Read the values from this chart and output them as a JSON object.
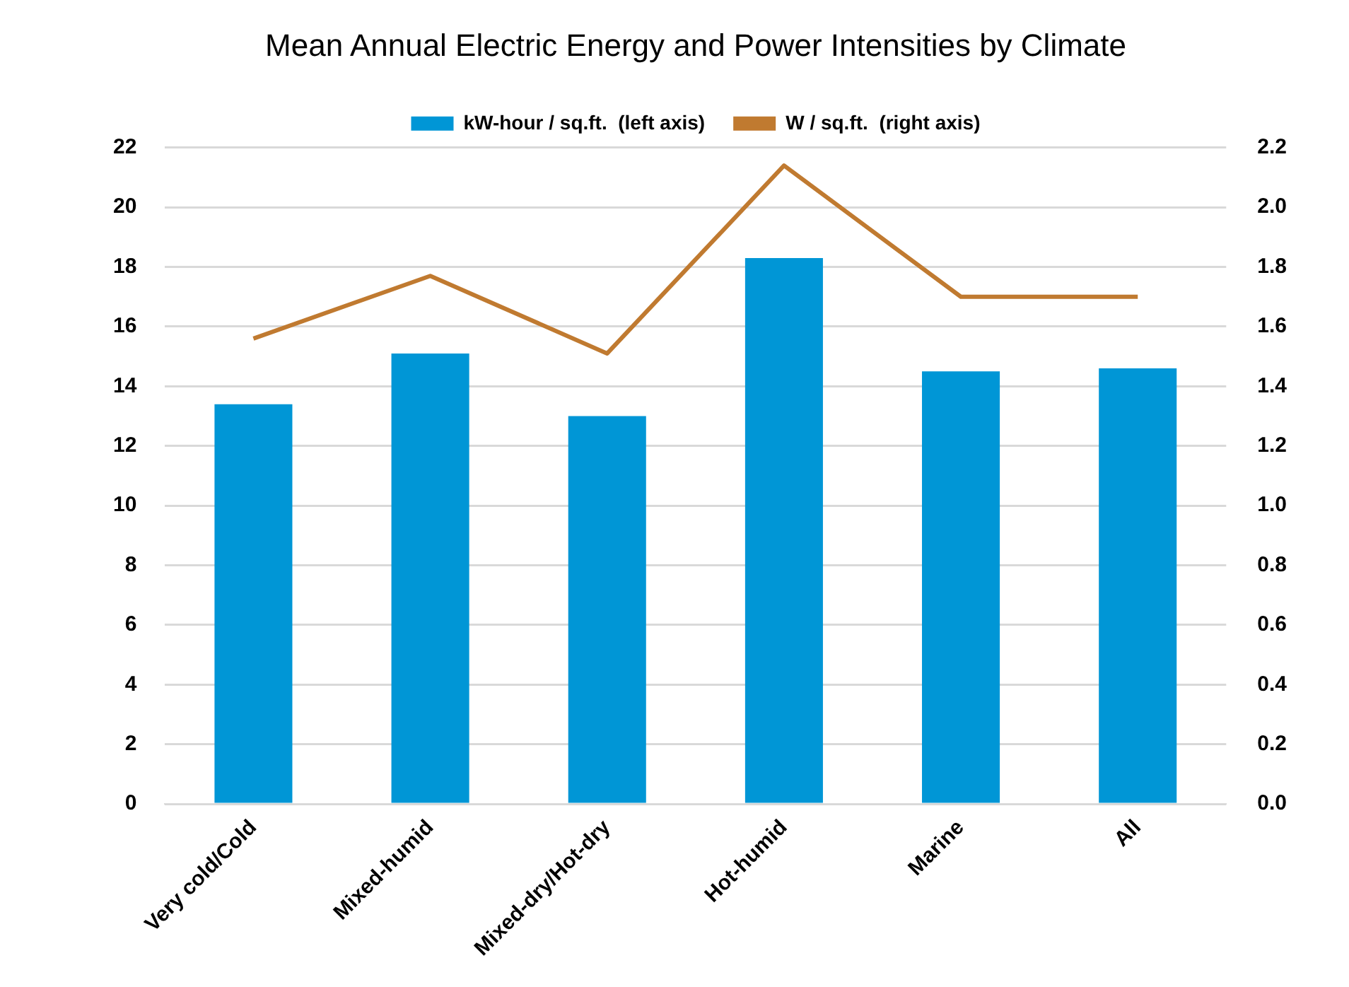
{
  "chart_data": {
    "type": "bar",
    "title": "Mean Annual Electric Energy and Power Intensities by Climate",
    "categories": [
      "Very cold/Cold",
      "Mixed-humid",
      "Mixed-dry/Hot-dry",
      "Hot-humid",
      "Marine",
      "All"
    ],
    "series": [
      {
        "name": "kW-hour / sq.ft.  (left axis)",
        "color": "#0096d6",
        "values": [
          13.4,
          15.1,
          13.0,
          18.3,
          14.5,
          14.6
        ]
      },
      {
        "name": "W / sq.ft.  (right axis)",
        "type": "line",
        "axis": "y2",
        "color": "#c07a30",
        "values": [
          1.56,
          1.77,
          1.51,
          2.14,
          1.7,
          1.7
        ]
      }
    ],
    "ylim": [
      0,
      22
    ],
    "yticks": [
      0,
      2,
      4,
      6,
      8,
      10,
      12,
      14,
      16,
      18,
      20,
      22
    ],
    "y2lim": [
      0,
      2.2
    ],
    "y2ticks": [
      {
        "value": 0,
        "label": "0.0"
      },
      {
        "value": 0.2,
        "label": "0.2"
      },
      {
        "value": 0.4,
        "label": "0.4"
      },
      {
        "value": 0.6,
        "label": "0.6"
      },
      {
        "value": 0.8,
        "label": "0.8"
      },
      {
        "value": 1,
        "label": "1.0"
      },
      {
        "value": 1.2,
        "label": "1.2"
      },
      {
        "value": 1.4,
        "label": "1.4"
      },
      {
        "value": 1.6,
        "label": "1.6"
      },
      {
        "value": 1.8,
        "label": "1.8"
      },
      {
        "value": 2,
        "label": "2.0"
      },
      {
        "value": 2.2,
        "label": "2.2"
      }
    ],
    "grid": "y",
    "legend": "top",
    "marker": "none"
  }
}
